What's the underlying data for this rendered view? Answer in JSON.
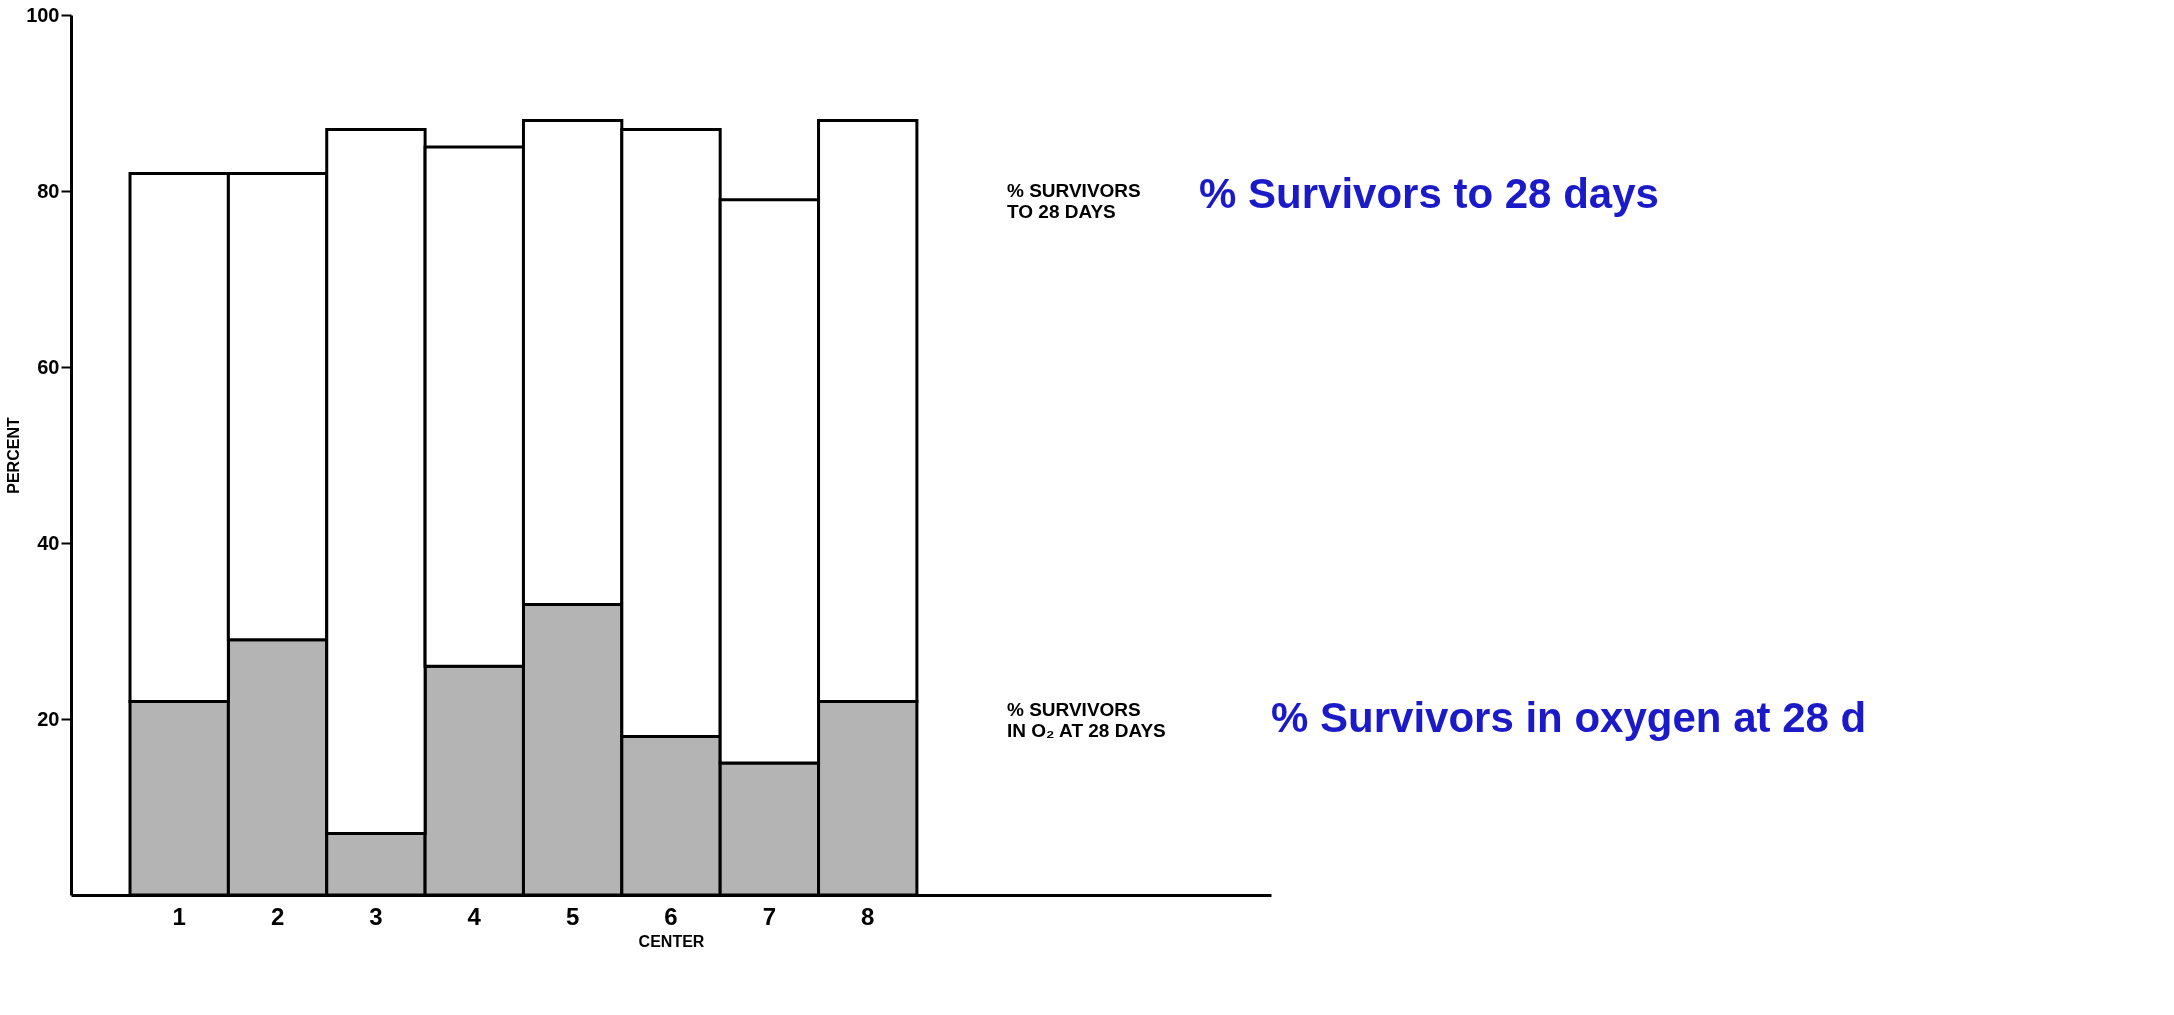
{
  "chart_data": {
    "type": "bar",
    "stacked": true,
    "xlabel": "CENTER",
    "ylabel": "PERCENT",
    "categories": [
      "1",
      "2",
      "3",
      "4",
      "5",
      "6",
      "7",
      "8"
    ],
    "series": [
      {
        "name": "% SURVIVORS\nIN O₂ AT 28 DAYS",
        "color": "#b4b4b4",
        "values": [
          22,
          29,
          7,
          26,
          33,
          18,
          15,
          22
        ]
      },
      {
        "name": "% SURVIVORS\nTO 28 DAYS",
        "color": "#ffffff",
        "values": [
          60,
          53,
          80,
          59,
          55,
          69,
          64,
          66
        ]
      }
    ],
    "ylim": [
      0,
      100
    ],
    "yticks": [
      20,
      40,
      60,
      80,
      100
    ],
    "annotations": [
      "% Survivors in oxygen at 28 d",
      "% Survivors to 28 days"
    ],
    "grid": false
  }
}
